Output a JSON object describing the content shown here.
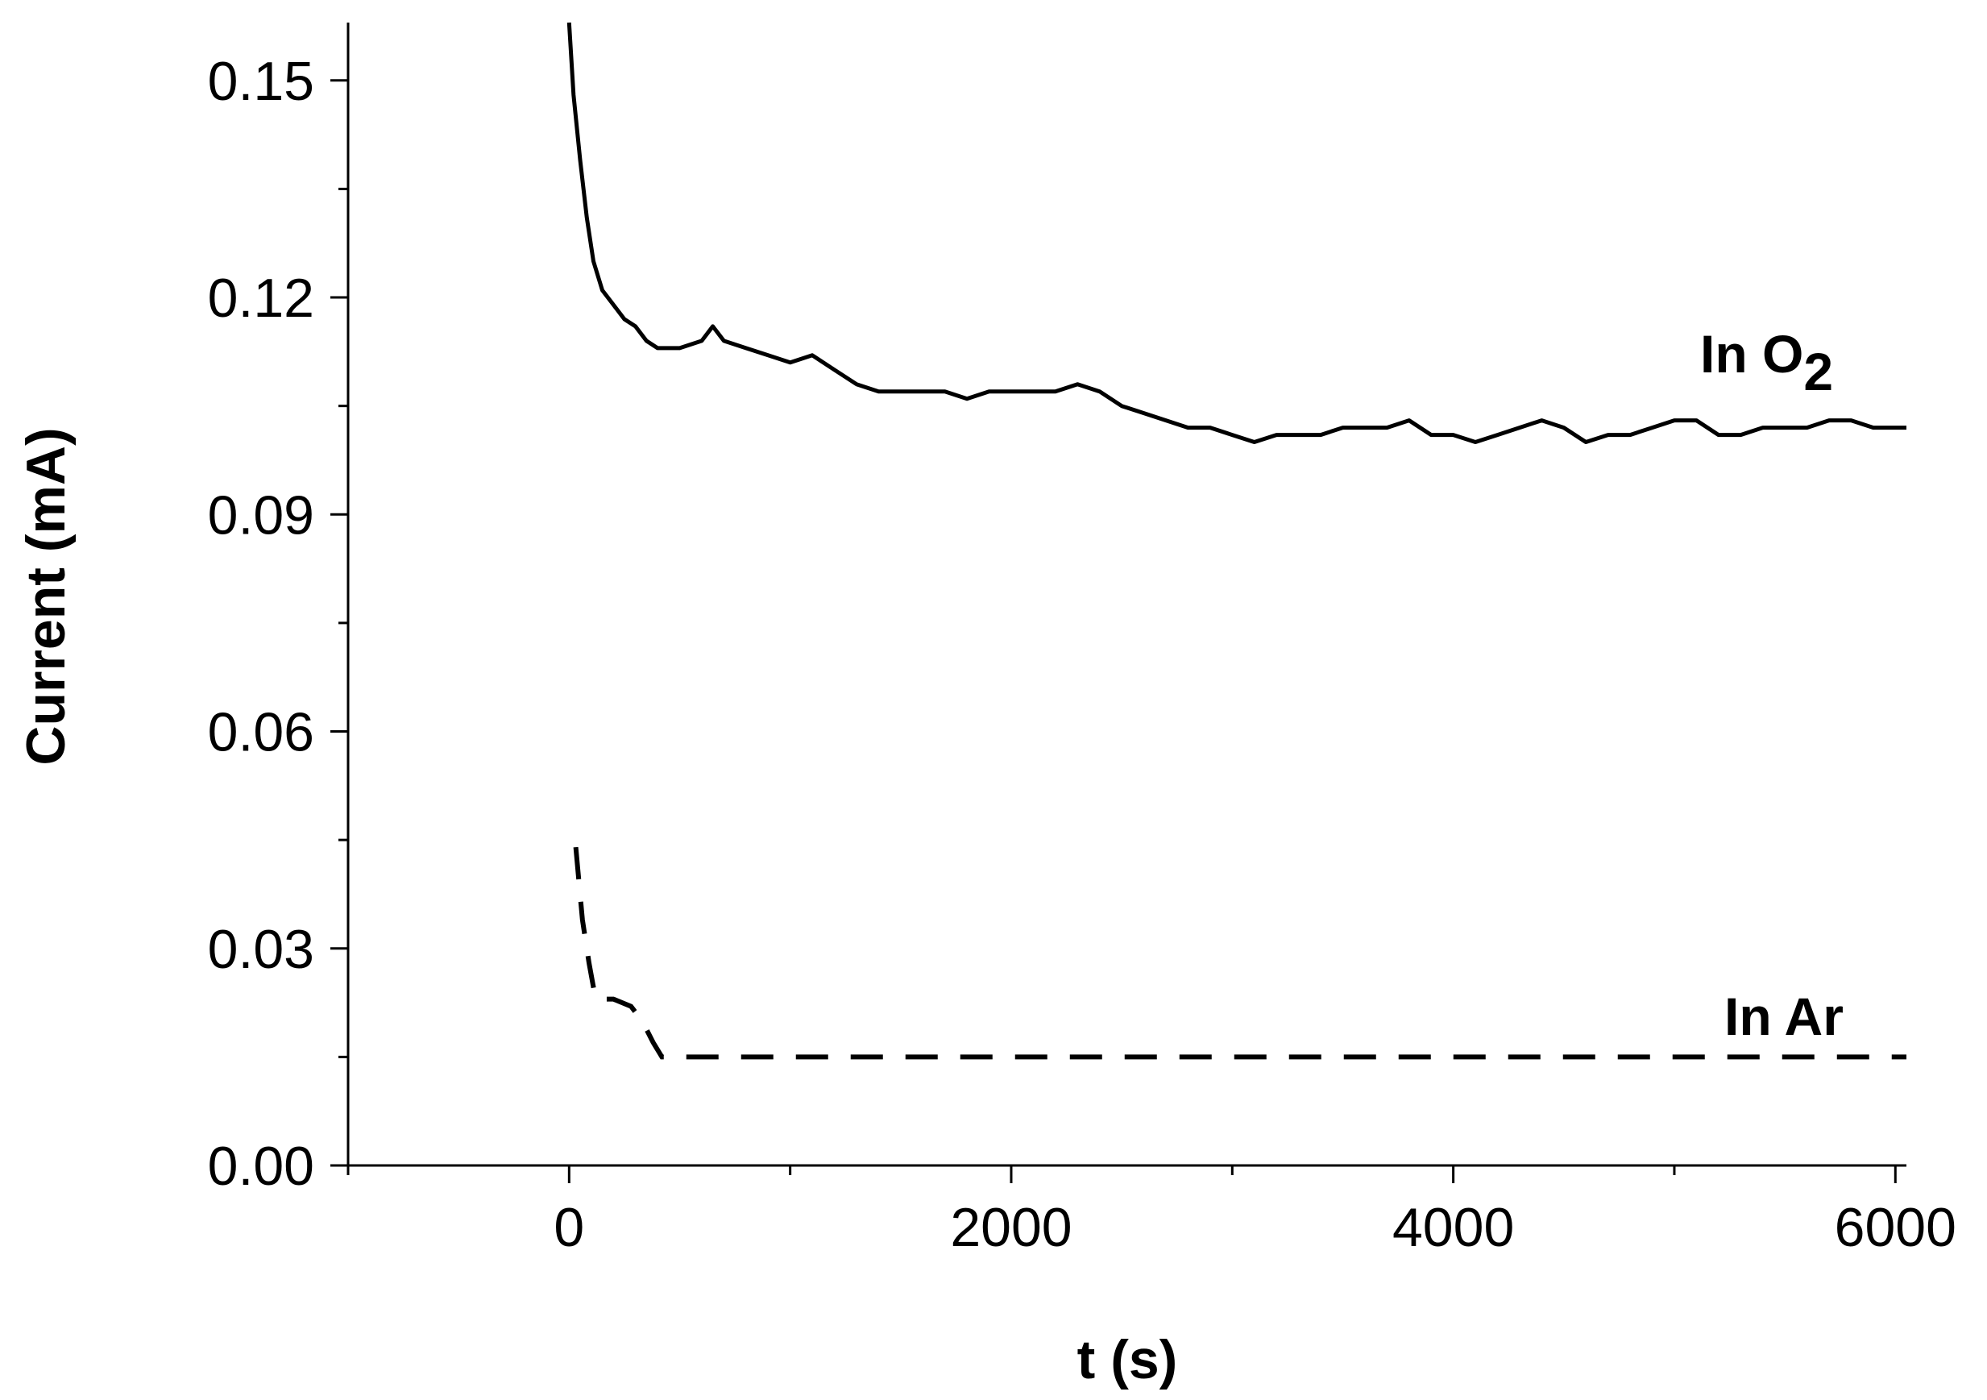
{
  "chart_data": {
    "type": "line",
    "xlabel": "t (s)",
    "ylabel": "Current (mA)",
    "xlim": [
      -1000,
      6050
    ],
    "ylim": [
      0.0,
      0.158
    ],
    "x_ticks": [
      0,
      2000,
      4000,
      6000
    ],
    "x_tick_labels": [
      "0",
      "2000",
      "4000",
      "6000"
    ],
    "x_minor_ticks": [
      -1000,
      1000,
      3000,
      5000
    ],
    "y_ticks": [
      0.0,
      0.03,
      0.06,
      0.09,
      0.12,
      0.15
    ],
    "y_tick_labels": [
      "0.00",
      "0.03",
      "0.06",
      "0.09",
      "0.12",
      "0.15"
    ],
    "y_minor_ticks": [
      0.015,
      0.045,
      0.075,
      0.105,
      0.135
    ],
    "grid": false,
    "series": [
      {
        "name": "In O2",
        "label_main": "In O",
        "label_sub": "2",
        "line_style": "solid",
        "x": [
          0,
          20,
          50,
          80,
          110,
          150,
          200,
          250,
          300,
          350,
          400,
          500,
          600,
          650,
          700,
          800,
          900,
          1000,
          1100,
          1200,
          1300,
          1400,
          1500,
          1600,
          1700,
          1800,
          1900,
          2000,
          2100,
          2200,
          2300,
          2400,
          2500,
          2600,
          2700,
          2800,
          2900,
          3000,
          3100,
          3200,
          3300,
          3400,
          3500,
          3600,
          3700,
          3800,
          3900,
          4000,
          4100,
          4200,
          4300,
          4400,
          4500,
          4600,
          4700,
          4800,
          4900,
          5000,
          5100,
          5200,
          5300,
          5400,
          5500,
          5600,
          5700,
          5800,
          5900,
          6000,
          6050
        ],
        "y": [
          0.158,
          0.148,
          0.139,
          0.131,
          0.125,
          0.121,
          0.119,
          0.117,
          0.116,
          0.114,
          0.113,
          0.113,
          0.114,
          0.116,
          0.114,
          0.113,
          0.112,
          0.111,
          0.112,
          0.11,
          0.108,
          0.107,
          0.107,
          0.107,
          0.107,
          0.106,
          0.107,
          0.107,
          0.107,
          0.107,
          0.108,
          0.107,
          0.105,
          0.104,
          0.103,
          0.102,
          0.102,
          0.101,
          0.1,
          0.101,
          0.101,
          0.101,
          0.102,
          0.102,
          0.102,
          0.103,
          0.101,
          0.101,
          0.1,
          0.101,
          0.102,
          0.103,
          0.102,
          0.1,
          0.101,
          0.101,
          0.102,
          0.103,
          0.103,
          0.101,
          0.101,
          0.102,
          0.102,
          0.102,
          0.103,
          0.103,
          0.102,
          0.102,
          0.102
        ]
      },
      {
        "name": "In Ar",
        "label_main": "In Ar",
        "line_style": "dashed",
        "x": [
          30,
          60,
          90,
          120,
          200,
          280,
          330,
          380,
          420,
          500,
          1000,
          2000,
          3000,
          4000,
          5000,
          6000,
          6050
        ],
        "y": [
          0.044,
          0.034,
          0.028,
          0.023,
          0.023,
          0.022,
          0.02,
          0.017,
          0.015,
          0.015,
          0.015,
          0.015,
          0.015,
          0.015,
          0.015,
          0.015,
          0.015
        ]
      }
    ]
  }
}
